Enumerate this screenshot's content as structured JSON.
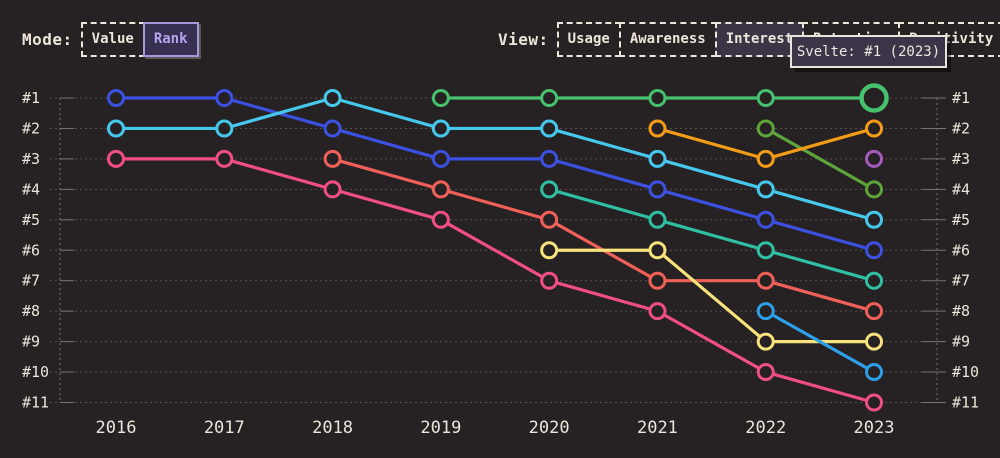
{
  "theme": {
    "background": "#262122",
    "text": "#ebe5dc",
    "grid": "#57514f",
    "axis": "#7a746e",
    "accent_purple": "#b5a4ee",
    "tooltip_bg": "#3b3547",
    "tooltip_border": "#e9e3da"
  },
  "controls": {
    "mode": {
      "label": "Mode:",
      "options": [
        {
          "label": "Value",
          "selected": false
        },
        {
          "label": "Rank",
          "selected": true
        }
      ]
    },
    "view": {
      "label": "View:",
      "options": [
        {
          "label": "Usage",
          "selected": false
        },
        {
          "label": "Awareness",
          "selected": false
        },
        {
          "label": "Interest",
          "selected": true
        },
        {
          "label": "Retention",
          "selected": false
        },
        {
          "label": "Positivity",
          "selected": false
        }
      ]
    }
  },
  "tooltip": {
    "text": "Svelte: #1 (2023)"
  },
  "chart_data": {
    "type": "line",
    "variant": "bump-rank-chart",
    "title": "",
    "x": [
      "2016",
      "2017",
      "2018",
      "2019",
      "2020",
      "2021",
      "2022",
      "2023"
    ],
    "y_ticks": [
      "#1",
      "#2",
      "#3",
      "#4",
      "#5",
      "#6",
      "#7",
      "#8",
      "#9",
      "#10",
      "#11"
    ],
    "y_axis": "rank (1 = best, shown top)",
    "grid": "dotted horizontal row lines, dotted vertical edge axes, rank labels on both sides",
    "legend": "none",
    "series": [
      {
        "name": "series-pink",
        "color": "#f04e84",
        "ranks": [
          3,
          3,
          4,
          5,
          7,
          8,
          10,
          11
        ]
      },
      {
        "name": "series-royal-blue",
        "color": "#3c50e1",
        "ranks": [
          1,
          1,
          2,
          3,
          3,
          4,
          5,
          6
        ]
      },
      {
        "name": "series-cyan",
        "color": "#46c8ec",
        "ranks": [
          2,
          2,
          1,
          2,
          2,
          3,
          4,
          5
        ]
      },
      {
        "name": "series-red",
        "color": "#f06058",
        "ranks": [
          null,
          null,
          3,
          4,
          5,
          7,
          7,
          8
        ]
      },
      {
        "name": "series-teal",
        "color": "#2fbfa3",
        "ranks": [
          null,
          null,
          null,
          null,
          4,
          5,
          6,
          7
        ]
      },
      {
        "name": "series-yellow",
        "color": "#f8e27b",
        "ranks": [
          null,
          null,
          null,
          null,
          6,
          6,
          9,
          9
        ]
      },
      {
        "name": "series-sky-blue",
        "color": "#2d9fe8",
        "ranks": [
          null,
          null,
          null,
          null,
          null,
          null,
          8,
          10
        ]
      },
      {
        "name": "series-olive-green",
        "color": "#5da53a",
        "ranks": [
          null,
          null,
          null,
          null,
          null,
          null,
          2,
          4
        ]
      },
      {
        "name": "series-orange",
        "color": "#f29c17",
        "ranks": [
          null,
          null,
          null,
          null,
          null,
          2,
          3,
          2
        ]
      },
      {
        "name": "series-purple",
        "color": "#a55abd",
        "ranks": [
          null,
          null,
          null,
          null,
          null,
          null,
          null,
          3
        ]
      },
      {
        "name": "Svelte",
        "color": "#46c16e",
        "ranks": [
          null,
          null,
          null,
          1,
          1,
          1,
          1,
          1
        ]
      }
    ],
    "highlight": {
      "series": "Svelte",
      "x": "2023",
      "rank": 1
    }
  }
}
